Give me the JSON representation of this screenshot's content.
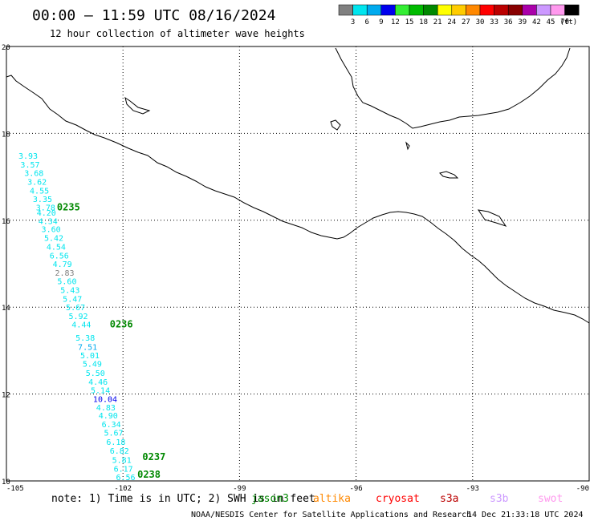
{
  "chart_data": {
    "type": "map-track",
    "title": "00:00 – 11:59 UTC 08/16/2024",
    "subtitle": "12 hour collection of altimeter wave heights",
    "xlim": [
      -105,
      -90
    ],
    "ylim": [
      10,
      20
    ],
    "x_ticks": [
      "-105",
      "-102",
      "-99",
      "-96",
      "-93",
      "-90"
    ],
    "y_ticks": [
      "20",
      "18",
      "16",
      "14",
      "12",
      "10"
    ],
    "grid": true,
    "legend": {
      "position": "top-right",
      "unit_label": "(ft)",
      "bins": [
        {
          "label": "3",
          "color": "#808080"
        },
        {
          "label": "6",
          "color": "#00e5ee"
        },
        {
          "label": "9",
          "color": "#00aaee"
        },
        {
          "label": "12",
          "color": "#0000ee"
        },
        {
          "label": "15",
          "color": "#33ee33"
        },
        {
          "label": "18",
          "color": "#00bb00"
        },
        {
          "label": "21",
          "color": "#008800"
        },
        {
          "label": "24",
          "color": "#ffff00"
        },
        {
          "label": "27",
          "color": "#ffcc00"
        },
        {
          "label": "30",
          "color": "#ff8800"
        },
        {
          "label": "33",
          "color": "#ff0000"
        },
        {
          "label": "36",
          "color": "#bb0000"
        },
        {
          "label": "39",
          "color": "#880000"
        },
        {
          "label": "42",
          "color": "#aa00aa"
        },
        {
          "label": "45",
          "color": "#cc99ff"
        },
        {
          "label": "70",
          "color": "#ff99ee"
        },
        {
          "label": "",
          "color": "#000000"
        }
      ]
    },
    "track": [
      {
        "lon": -104.69,
        "lat": 17.49,
        "swh": "3.93",
        "color": "#00e5ee"
      },
      {
        "lon": -104.64,
        "lat": 17.29,
        "swh": "3.57",
        "color": "#00e5ee"
      },
      {
        "lon": -104.54,
        "lat": 17.09,
        "swh": "3.68",
        "color": "#00e5ee"
      },
      {
        "lon": -104.46,
        "lat": 16.89,
        "swh": "3.62",
        "color": "#00e5ee"
      },
      {
        "lon": -104.4,
        "lat": 16.69,
        "swh": "4.55",
        "color": "#00e5ee"
      },
      {
        "lon": -104.32,
        "lat": 16.49,
        "swh": "3.35",
        "color": "#00e5ee"
      },
      {
        "lon": -104.24,
        "lat": 16.3,
        "swh": "3.78",
        "color": "#00e5ee"
      },
      {
        "lon": -104.22,
        "lat": 16.18,
        "swh": "4.20",
        "color": "#00e5ee"
      },
      {
        "lon": -104.18,
        "lat": 15.99,
        "swh": "4.34",
        "color": "#00e5ee"
      },
      {
        "lon": -104.1,
        "lat": 15.8,
        "swh": "3.60",
        "color": "#00e5ee"
      },
      {
        "lon": -104.03,
        "lat": 15.6,
        "swh": "5.42",
        "color": "#00e5ee"
      },
      {
        "lon": -103.97,
        "lat": 15.4,
        "swh": "4.54",
        "color": "#00e5ee"
      },
      {
        "lon": -103.89,
        "lat": 15.19,
        "swh": "6.56",
        "color": "#00e5ee"
      },
      {
        "lon": -103.81,
        "lat": 15.0,
        "swh": "4.79",
        "color": "#00e5ee"
      },
      {
        "lon": -103.75,
        "lat": 14.8,
        "swh": "2.83",
        "color": "#808080"
      },
      {
        "lon": -103.69,
        "lat": 14.6,
        "swh": "5.60",
        "color": "#00e5ee"
      },
      {
        "lon": -103.61,
        "lat": 14.4,
        "swh": "5.43",
        "color": "#00e5ee"
      },
      {
        "lon": -103.55,
        "lat": 14.2,
        "swh": "5.47",
        "color": "#00e5ee"
      },
      {
        "lon": -103.47,
        "lat": 14.0,
        "swh": "5.67",
        "color": "#00e5ee"
      },
      {
        "lon": -103.4,
        "lat": 13.8,
        "swh": "5.92",
        "color": "#00e5ee"
      },
      {
        "lon": -103.32,
        "lat": 13.61,
        "swh": "4.44",
        "color": "#00e5ee"
      },
      {
        "lon": -103.22,
        "lat": 13.3,
        "swh": "5.38",
        "color": "#00e5ee"
      },
      {
        "lon": -103.16,
        "lat": 13.09,
        "swh": "7.51",
        "color": "#00aaee"
      },
      {
        "lon": -103.1,
        "lat": 12.9,
        "swh": "5.01",
        "color": "#00e5ee"
      },
      {
        "lon": -103.04,
        "lat": 12.7,
        "swh": "5.49",
        "color": "#00e5ee"
      },
      {
        "lon": -102.96,
        "lat": 12.49,
        "swh": "5.50",
        "color": "#00e5ee"
      },
      {
        "lon": -102.89,
        "lat": 12.29,
        "swh": "4.46",
        "color": "#00e5ee"
      },
      {
        "lon": -102.83,
        "lat": 12.09,
        "swh": "5.14",
        "color": "#00e5ee"
      },
      {
        "lon": -102.77,
        "lat": 11.89,
        "swh": "10.04",
        "color": "#0000ee"
      },
      {
        "lon": -102.69,
        "lat": 11.7,
        "swh": "4.83",
        "color": "#00e5ee"
      },
      {
        "lon": -102.63,
        "lat": 11.51,
        "swh": "4.90",
        "color": "#00e5ee"
      },
      {
        "lon": -102.55,
        "lat": 11.31,
        "swh": "6.34",
        "color": "#00e5ee"
      },
      {
        "lon": -102.49,
        "lat": 11.12,
        "swh": "5.67",
        "color": "#00e5ee"
      },
      {
        "lon": -102.43,
        "lat": 10.9,
        "swh": "6.18",
        "color": "#00e5ee"
      },
      {
        "lon": -102.34,
        "lat": 10.7,
        "swh": "6.82",
        "color": "#00e5ee"
      },
      {
        "lon": -102.28,
        "lat": 10.49,
        "swh": "5.81",
        "color": "#00e5ee"
      },
      {
        "lon": -102.24,
        "lat": 10.29,
        "swh": "6.17",
        "color": "#00e5ee"
      },
      {
        "lon": -102.18,
        "lat": 10.09,
        "swh": "6.56",
        "color": "#00e5ee"
      }
    ],
    "time_annotations": [
      {
        "lon": -103.7,
        "lat": 16.3,
        "text": "0235",
        "color": "#008800"
      },
      {
        "lon": -102.34,
        "lat": 13.61,
        "text": "0236",
        "color": "#008800"
      },
      {
        "lon": -101.5,
        "lat": 10.55,
        "text": "0237",
        "color": "#008800"
      },
      {
        "lon": -101.63,
        "lat": 10.15,
        "text": "0238",
        "color": "#008800"
      }
    ],
    "satellite_legend": [
      {
        "label": "jason3",
        "color": "#008800"
      },
      {
        "label": "altika",
        "color": "#ff8800"
      },
      {
        "label": "cryosat",
        "color": "#ff0000"
      },
      {
        "label": "s3a",
        "color": "#bb0000"
      },
      {
        "label": "s3b",
        "color": "#cc99ff"
      },
      {
        "label": "swot",
        "color": "#ff99ee"
      }
    ]
  },
  "footer": {
    "note": "note: 1) Time is in UTC; 2) SWH is in feet",
    "credit": "NOAA/NESDIS Center for Satellite Applications and Research",
    "generated": "14 Dec 21:33:18 UTC 2024"
  }
}
